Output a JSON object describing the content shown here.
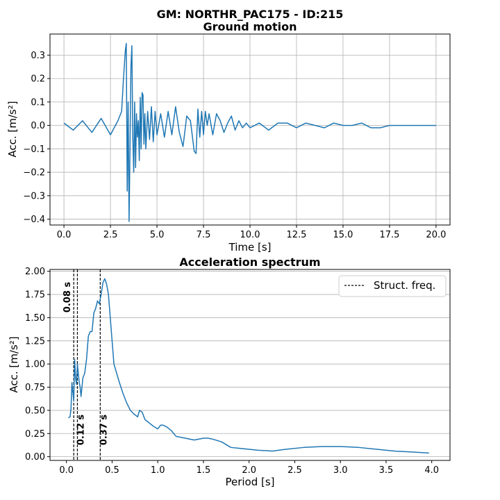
{
  "figure": {
    "suptitle": "GM: NORTHR_PAC175 - ID:215"
  },
  "chart_data": [
    {
      "type": "line",
      "title": "Ground motion",
      "xlabel": "Time [s]",
      "ylabel": "Acc. [m/s²]",
      "xlim": [
        -0.75,
        20.75
      ],
      "ylim": [
        -0.425,
        0.39
      ],
      "xticks": [
        0.0,
        2.5,
        5.0,
        7.5,
        10.0,
        12.5,
        15.0,
        17.5,
        20.0
      ],
      "xtick_labels": [
        "0.0",
        "2.5",
        "5.0",
        "7.5",
        "10.0",
        "12.5",
        "15.0",
        "17.5",
        "20.0"
      ],
      "yticks": [
        -0.4,
        -0.3,
        -0.2,
        -0.1,
        0.0,
        0.1,
        0.2,
        0.3
      ],
      "ytick_labels": [
        "−0.4",
        "−0.3",
        "−0.2",
        "−0.1",
        "0.0",
        "0.1",
        "0.2",
        "0.3"
      ],
      "grid": true,
      "color": "#1f77b4",
      "x": [
        0.0,
        0.5,
        1.0,
        1.5,
        2.0,
        2.5,
        2.9,
        3.1,
        3.2,
        3.3,
        3.35,
        3.4,
        3.45,
        3.5,
        3.55,
        3.6,
        3.65,
        3.7,
        3.75,
        3.8,
        3.85,
        3.9,
        3.95,
        4.0,
        4.05,
        4.1,
        4.15,
        4.2,
        4.25,
        4.3,
        4.35,
        4.4,
        4.5,
        4.6,
        4.7,
        4.8,
        4.9,
        5.0,
        5.2,
        5.4,
        5.6,
        5.8,
        6.0,
        6.2,
        6.4,
        6.6,
        6.8,
        7.0,
        7.1,
        7.2,
        7.3,
        7.4,
        7.5,
        7.6,
        7.7,
        7.8,
        8.0,
        8.2,
        8.4,
        8.6,
        8.8,
        9.0,
        9.2,
        9.4,
        9.6,
        9.8,
        10.0,
        10.5,
        11.0,
        11.5,
        12.0,
        12.5,
        13.0,
        13.5,
        14.0,
        14.5,
        15.0,
        15.5,
        16.0,
        16.5,
        17.0,
        17.5,
        18.0,
        18.5,
        19.0,
        19.5,
        20.0
      ],
      "y": [
        0.01,
        -0.02,
        0.02,
        -0.03,
        0.03,
        -0.04,
        0.02,
        0.06,
        0.2,
        0.32,
        0.35,
        -0.28,
        0.1,
        -0.41,
        -0.1,
        0.25,
        0.34,
        -0.05,
        -0.2,
        0.1,
        -0.18,
        0.05,
        -0.05,
        0.02,
        -0.15,
        0.12,
        -0.1,
        0.14,
        0.13,
        -0.08,
        0.05,
        -0.1,
        0.06,
        -0.06,
        0.08,
        -0.07,
        0.06,
        -0.04,
        0.05,
        -0.05,
        0.06,
        -0.04,
        0.08,
        -0.03,
        -0.09,
        0.04,
        0.02,
        -0.11,
        -0.12,
        0.07,
        -0.05,
        0.06,
        -0.04,
        0.06,
        0.0,
        0.05,
        -0.04,
        0.05,
        0.02,
        -0.03,
        0.01,
        0.04,
        -0.02,
        0.02,
        -0.01,
        0.01,
        -0.01,
        0.01,
        -0.02,
        0.01,
        0.01,
        -0.01,
        0.01,
        0.0,
        -0.01,
        0.01,
        0.0,
        0.0,
        0.01,
        -0.01,
        -0.01,
        0.0,
        0.0,
        0.0,
        0.0,
        0.0,
        0.0
      ]
    },
    {
      "type": "line",
      "title": "Acceleration spectrum",
      "xlabel": "Period [s]",
      "ylabel": "Acc. [m/s²]",
      "xlim": [
        -0.18,
        4.2
      ],
      "ylim": [
        -0.04,
        2.02
      ],
      "xticks": [
        0.0,
        0.5,
        1.0,
        1.5,
        2.0,
        2.5,
        3.0,
        3.5,
        4.0
      ],
      "xtick_labels": [
        "0.0",
        "0.5",
        "1.0",
        "1.5",
        "2.0",
        "2.5",
        "3.0",
        "3.5",
        "4.0"
      ],
      "yticks": [
        0.0,
        0.25,
        0.5,
        0.75,
        1.0,
        1.25,
        1.5,
        1.75,
        2.0
      ],
      "ytick_labels": [
        "0.00",
        "0.25",
        "0.50",
        "0.75",
        "1.00",
        "1.25",
        "1.50",
        "1.75",
        "2.00"
      ],
      "grid": "y",
      "color": "#1f77b4",
      "legend": {
        "entries": [
          "Struct. freq."
        ],
        "placement": "top-right"
      },
      "x": [
        0.02,
        0.04,
        0.05,
        0.06,
        0.07,
        0.08,
        0.09,
        0.1,
        0.11,
        0.12,
        0.13,
        0.14,
        0.15,
        0.16,
        0.18,
        0.2,
        0.22,
        0.24,
        0.26,
        0.28,
        0.3,
        0.32,
        0.34,
        0.36,
        0.38,
        0.4,
        0.42,
        0.44,
        0.46,
        0.48,
        0.5,
        0.52,
        0.55,
        0.58,
        0.62,
        0.66,
        0.7,
        0.74,
        0.78,
        0.8,
        0.83,
        0.86,
        0.9,
        0.95,
        1.0,
        1.03,
        1.06,
        1.1,
        1.15,
        1.2,
        1.3,
        1.4,
        1.5,
        1.55,
        1.6,
        1.7,
        1.8,
        1.9,
        2.0,
        2.1,
        2.2,
        2.25,
        2.4,
        2.6,
        2.8,
        3.0,
        3.2,
        3.4,
        3.6,
        3.8,
        3.97
      ],
      "y": [
        0.42,
        0.43,
        0.52,
        0.8,
        0.7,
        0.6,
        1.05,
        0.85,
        0.78,
        1.0,
        0.9,
        0.8,
        0.75,
        0.65,
        0.85,
        0.9,
        1.05,
        1.3,
        1.35,
        1.35,
        1.55,
        1.6,
        1.68,
        1.65,
        1.75,
        1.88,
        1.92,
        1.86,
        1.75,
        1.5,
        1.25,
        1.0,
        0.9,
        0.8,
        0.68,
        0.58,
        0.5,
        0.46,
        0.43,
        0.5,
        0.48,
        0.4,
        0.37,
        0.33,
        0.3,
        0.34,
        0.34,
        0.32,
        0.28,
        0.22,
        0.2,
        0.18,
        0.2,
        0.2,
        0.19,
        0.16,
        0.1,
        0.09,
        0.08,
        0.07,
        0.065,
        0.06,
        0.08,
        0.1,
        0.11,
        0.11,
        0.1,
        0.08,
        0.06,
        0.05,
        0.04
      ],
      "struct_periods": [
        0.08,
        0.12,
        0.37
      ],
      "struct_labels": [
        "0.08 s",
        "0.12 s",
        "0.37 s"
      ]
    }
  ]
}
